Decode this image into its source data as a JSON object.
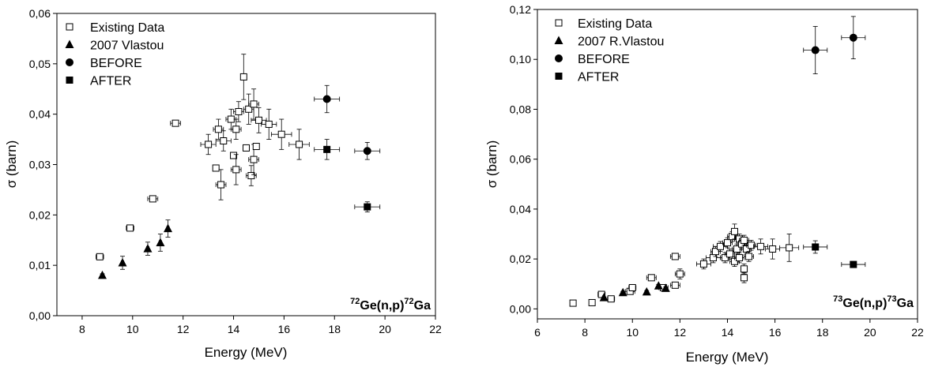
{
  "chart_data": [
    {
      "type": "scatter",
      "reaction": {
        "pre": "72",
        "mid": "Ge(n,p)",
        "post": "72",
        "end": "Ga"
      },
      "xlabel": "Energy (MeV)",
      "ylabel": "σ (barn)",
      "xlim": [
        7,
        22
      ],
      "ylim": [
        0,
        0.06
      ],
      "xticks": [
        8,
        10,
        12,
        14,
        16,
        18,
        20,
        22
      ],
      "xtick_labels": [
        "8",
        "10",
        "12",
        "14",
        "16",
        "18",
        "20",
        "22"
      ],
      "yticks": [
        0,
        0.01,
        0.02,
        0.03,
        0.04,
        0.05,
        0.06
      ],
      "ytick_labels": [
        "0,00",
        "0,01",
        "0,02",
        "0,03",
        "0,04",
        "0,05",
        "0,06"
      ],
      "grid": false,
      "legend_position": "top-left",
      "series": [
        {
          "name": "Existing Data",
          "marker": "square-open",
          "points": [
            {
              "x": 8.7,
              "y": 0.0117,
              "xerr": 0.15,
              "yerr": 0.0004
            },
            {
              "x": 9.9,
              "y": 0.0174,
              "xerr": 0.15,
              "yerr": 0.0004
            },
            {
              "x": 10.8,
              "y": 0.0232,
              "xerr": 0.2,
              "yerr": 0.0004
            },
            {
              "x": 11.7,
              "y": 0.0382,
              "xerr": 0.2,
              "yerr": 0.0004
            },
            {
              "x": 13.0,
              "y": 0.034,
              "xerr": 0.3,
              "yerr": 0.002
            },
            {
              "x": 13.3,
              "y": 0.0293,
              "xerr": 0.1,
              "yerr": 0.0004
            },
            {
              "x": 13.4,
              "y": 0.037,
              "xerr": 0.2,
              "yerr": 0.002
            },
            {
              "x": 13.5,
              "y": 0.026,
              "xerr": 0.2,
              "yerr": 0.003
            },
            {
              "x": 13.6,
              "y": 0.0347,
              "xerr": 0.3,
              "yerr": 0.002
            },
            {
              "x": 13.9,
              "y": 0.039,
              "xerr": 0.2,
              "yerr": 0.002
            },
            {
              "x": 14.0,
              "y": 0.0318,
              "xerr": 0.1,
              "yerr": 0.0004
            },
            {
              "x": 14.1,
              "y": 0.037,
              "xerr": 0.2,
              "yerr": 0.002
            },
            {
              "x": 14.1,
              "y": 0.029,
              "xerr": 0.2,
              "yerr": 0.003
            },
            {
              "x": 14.2,
              "y": 0.0405,
              "xerr": 0.2,
              "yerr": 0.002
            },
            {
              "x": 14.4,
              "y": 0.0474,
              "xerr": 0.1,
              "yerr": 0.0045
            },
            {
              "x": 14.5,
              "y": 0.0333,
              "xerr": 0.1,
              "yerr": 0.0004
            },
            {
              "x": 14.6,
              "y": 0.041,
              "xerr": 0.2,
              "yerr": 0.003
            },
            {
              "x": 14.7,
              "y": 0.0278,
              "xerr": 0.2,
              "yerr": 0.002
            },
            {
              "x": 14.8,
              "y": 0.042,
              "xerr": 0.2,
              "yerr": 0.003
            },
            {
              "x": 14.8,
              "y": 0.031,
              "xerr": 0.2,
              "yerr": 0.003
            },
            {
              "x": 14.9,
              "y": 0.0336,
              "xerr": 0.1,
              "yerr": 0.0004
            },
            {
              "x": 15.0,
              "y": 0.0388,
              "xerr": 0.3,
              "yerr": 0.0025
            },
            {
              "x": 15.4,
              "y": 0.038,
              "xerr": 0.3,
              "yerr": 0.003
            },
            {
              "x": 15.9,
              "y": 0.036,
              "xerr": 0.4,
              "yerr": 0.003
            },
            {
              "x": 16.6,
              "y": 0.034,
              "xerr": 0.4,
              "yerr": 0.003
            }
          ]
        },
        {
          "name": "2007 Vlastou",
          "marker": "triangle-filled",
          "points": [
            {
              "x": 8.8,
              "y": 0.008,
              "xerr": 0.05,
              "yerr": 0.0003
            },
            {
              "x": 9.6,
              "y": 0.0105,
              "xerr": 0.05,
              "yerr": 0.0013
            },
            {
              "x": 10.6,
              "y": 0.0133,
              "xerr": 0.05,
              "yerr": 0.0013
            },
            {
              "x": 11.1,
              "y": 0.0145,
              "xerr": 0.05,
              "yerr": 0.0017
            },
            {
              "x": 11.4,
              "y": 0.0173,
              "xerr": 0.05,
              "yerr": 0.0017
            }
          ]
        },
        {
          "name": "BEFORE",
          "marker": "circle-filled",
          "points": [
            {
              "x": 17.7,
              "y": 0.043,
              "xerr": 0.5,
              "yerr": 0.0027
            },
            {
              "x": 19.3,
              "y": 0.0327,
              "xerr": 0.5,
              "yerr": 0.0017
            }
          ]
        },
        {
          "name": "AFTER",
          "marker": "square-filled",
          "points": [
            {
              "x": 17.7,
              "y": 0.033,
              "xerr": 0.5,
              "yerr": 0.002
            },
            {
              "x": 19.3,
              "y": 0.0216,
              "xerr": 0.5,
              "yerr": 0.001
            }
          ]
        }
      ]
    },
    {
      "type": "scatter",
      "reaction": {
        "pre": "73",
        "mid": "Ge(n,p)",
        "post": "73",
        "end": "Ga"
      },
      "xlabel": "Energy (MeV)",
      "ylabel": "σ (barn)",
      "xlim": [
        6,
        22
      ],
      "ylim": [
        -0.004,
        0.12
      ],
      "xticks": [
        6,
        8,
        10,
        12,
        14,
        16,
        18,
        20,
        22
      ],
      "xtick_labels": [
        "6",
        "8",
        "10",
        "12",
        "14",
        "16",
        "18",
        "20",
        "22"
      ],
      "yticks": [
        0,
        0.02,
        0.04,
        0.06,
        0.08,
        0.1,
        0.12
      ],
      "ytick_labels": [
        "0,00",
        "0,02",
        "0,04",
        "0,06",
        "0,08",
        "0,10",
        "0,12"
      ],
      "grid": false,
      "legend_position": "top-left",
      "series": [
        {
          "name": "Existing Data",
          "marker": "square-open",
          "points": [
            {
              "x": 7.5,
              "y": 0.0023,
              "xerr": 0.1,
              "yerr": 0.0003
            },
            {
              "x": 8.3,
              "y": 0.0025,
              "xerr": 0.1,
              "yerr": 0.0003
            },
            {
              "x": 8.7,
              "y": 0.0058,
              "xerr": 0.15,
              "yerr": 0.0004
            },
            {
              "x": 9.1,
              "y": 0.004,
              "xerr": 0.15,
              "yerr": 0.0004
            },
            {
              "x": 9.9,
              "y": 0.007,
              "xerr": 0.2,
              "yerr": 0.0005
            },
            {
              "x": 10.0,
              "y": 0.0085,
              "xerr": 0.15,
              "yerr": 0.0005
            },
            {
              "x": 10.8,
              "y": 0.0125,
              "xerr": 0.2,
              "yerr": 0.0005
            },
            {
              "x": 11.3,
              "y": 0.0085,
              "xerr": 0.2,
              "yerr": 0.0005
            },
            {
              "x": 11.8,
              "y": 0.021,
              "xerr": 0.2,
              "yerr": 0.0005
            },
            {
              "x": 11.8,
              "y": 0.0095,
              "xerr": 0.2,
              "yerr": 0.0005
            },
            {
              "x": 12.0,
              "y": 0.014,
              "xerr": 0.2,
              "yerr": 0.002
            },
            {
              "x": 13.0,
              "y": 0.018,
              "xerr": 0.3,
              "yerr": 0.002
            },
            {
              "x": 13.4,
              "y": 0.0205,
              "xerr": 0.3,
              "yerr": 0.002
            },
            {
              "x": 13.5,
              "y": 0.023,
              "xerr": 0.2,
              "yerr": 0.002
            },
            {
              "x": 13.7,
              "y": 0.025,
              "xerr": 0.3,
              "yerr": 0.002
            },
            {
              "x": 13.9,
              "y": 0.0205,
              "xerr": 0.2,
              "yerr": 0.002
            },
            {
              "x": 14.0,
              "y": 0.0265,
              "xerr": 0.2,
              "yerr": 0.002
            },
            {
              "x": 14.1,
              "y": 0.022,
              "xerr": 0.2,
              "yerr": 0.002
            },
            {
              "x": 14.2,
              "y": 0.029,
              "xerr": 0.2,
              "yerr": 0.002
            },
            {
              "x": 14.3,
              "y": 0.019,
              "xerr": 0.2,
              "yerr": 0.002
            },
            {
              "x": 14.3,
              "y": 0.031,
              "xerr": 0.1,
              "yerr": 0.003
            },
            {
              "x": 14.4,
              "y": 0.024,
              "xerr": 0.2,
              "yerr": 0.002
            },
            {
              "x": 14.5,
              "y": 0.028,
              "xerr": 0.2,
              "yerr": 0.002
            },
            {
              "x": 14.5,
              "y": 0.0205,
              "xerr": 0.2,
              "yerr": 0.002
            },
            {
              "x": 14.6,
              "y": 0.026,
              "xerr": 0.2,
              "yerr": 0.002
            },
            {
              "x": 14.7,
              "y": 0.0275,
              "xerr": 0.2,
              "yerr": 0.002
            },
            {
              "x": 14.7,
              "y": 0.016,
              "xerr": 0.1,
              "yerr": 0.002
            },
            {
              "x": 14.7,
              "y": 0.0125,
              "xerr": 0.1,
              "yerr": 0.002
            },
            {
              "x": 14.8,
              "y": 0.024,
              "xerr": 0.2,
              "yerr": 0.002
            },
            {
              "x": 14.9,
              "y": 0.021,
              "xerr": 0.2,
              "yerr": 0.002
            },
            {
              "x": 15.0,
              "y": 0.0255,
              "xerr": 0.2,
              "yerr": 0.002
            },
            {
              "x": 15.4,
              "y": 0.025,
              "xerr": 0.3,
              "yerr": 0.003
            },
            {
              "x": 15.9,
              "y": 0.024,
              "xerr": 0.3,
              "yerr": 0.004
            },
            {
              "x": 16.6,
              "y": 0.0245,
              "xerr": 0.4,
              "yerr": 0.0055
            }
          ]
        },
        {
          "name": "2007 R.Vlastou",
          "marker": "triangle-filled",
          "points": [
            {
              "x": 8.8,
              "y": 0.0045,
              "xerr": 0.05,
              "yerr": 0.0003
            },
            {
              "x": 9.6,
              "y": 0.0065,
              "xerr": 0.05,
              "yerr": 0.0005
            },
            {
              "x": 10.6,
              "y": 0.0068,
              "xerr": 0.05,
              "yerr": 0.0005
            },
            {
              "x": 11.1,
              "y": 0.0092,
              "xerr": 0.05,
              "yerr": 0.0006
            },
            {
              "x": 11.4,
              "y": 0.0082,
              "xerr": 0.05,
              "yerr": 0.0006
            }
          ]
        },
        {
          "name": "BEFORE",
          "marker": "circle-filled",
          "points": [
            {
              "x": 17.7,
              "y": 0.1037,
              "xerr": 0.5,
              "yerr": 0.0095
            },
            {
              "x": 19.3,
              "y": 0.1087,
              "xerr": 0.5,
              "yerr": 0.0085
            }
          ]
        },
        {
          "name": "AFTER",
          "marker": "square-filled",
          "points": [
            {
              "x": 17.7,
              "y": 0.0248,
              "xerr": 0.5,
              "yerr": 0.0025
            },
            {
              "x": 19.3,
              "y": 0.0178,
              "xerr": 0.5,
              "yerr": 0.001
            }
          ]
        }
      ]
    }
  ]
}
